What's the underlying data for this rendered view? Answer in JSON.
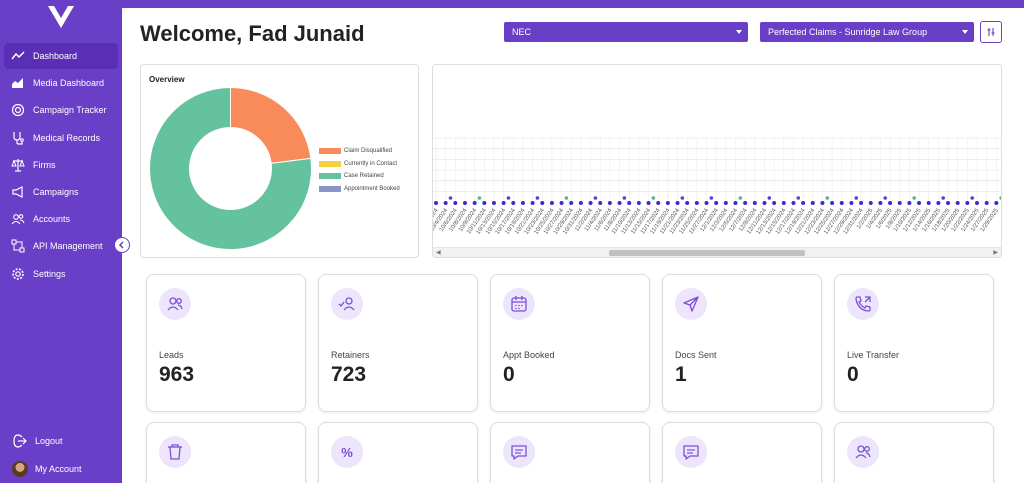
{
  "sidebar": {
    "items": [
      {
        "label": "Dashboard",
        "icon": "activity-icon",
        "active": true
      },
      {
        "label": "Media Dashboard",
        "icon": "area-chart-icon"
      },
      {
        "label": "Campaign Tracker",
        "icon": "target-icon"
      },
      {
        "label": "Medical Records",
        "icon": "stethoscope-icon"
      },
      {
        "label": "Firms",
        "icon": "scale-icon"
      },
      {
        "label": "Campaigns",
        "icon": "megaphone-icon"
      },
      {
        "label": "Accounts",
        "icon": "users-icon"
      },
      {
        "label": "API Management",
        "icon": "network-icon"
      },
      {
        "label": "Settings",
        "icon": "gear-icon"
      }
    ],
    "bottom": {
      "logout": "Logout",
      "account": "My Account"
    }
  },
  "header": {
    "welcome": "Welcome, Fad Junaid",
    "select_nec": "NEC",
    "select_firm": "Perfected Claims - Sunridge Law Group"
  },
  "overview": {
    "title": "Overview",
    "legend": [
      {
        "label": "Claim Disqualified",
        "color": "#f98a5a"
      },
      {
        "label": "Currently in Contact",
        "color": "#f5d23c"
      },
      {
        "label": "Case Retained",
        "color": "#64c29f"
      },
      {
        "label": "Appointment Booked",
        "color": "#8c96c6"
      }
    ]
  },
  "chart_data": {
    "type": "pie",
    "categories": [
      "Claim Disqualified",
      "Currently in Contact",
      "Case Retained",
      "Appointment Booked"
    ],
    "values": [
      23,
      0,
      77,
      0
    ],
    "colors": [
      "#f98a5a",
      "#f5d23c",
      "#64c29f",
      "#8c96c6"
    ]
  },
  "timeline": {
    "dates": [
      "10/2/2024",
      "10/4/2024",
      "10/6/2024",
      "10/8/2024",
      "10/9/2024",
      "10/11/2024",
      "10/13/2024",
      "10/15/2024",
      "10/17/2024",
      "10/19/2024",
      "10/21/2024",
      "10/23/2024",
      "10/25/2024",
      "10/27/2024",
      "10/29/2024",
      "10/31/2024",
      "11/2/2024",
      "11/4/2024",
      "11/6/2024",
      "11/8/2024",
      "11/10/2024",
      "11/13/2024",
      "11/15/2024",
      "11/17/2024",
      "11/19/2024",
      "11/21/2024",
      "11/23/2024",
      "11/25/2024",
      "11/27/2024",
      "12/1/2024",
      "12/3/2024",
      "12/5/2024",
      "12/7/2024",
      "12/9/2024",
      "12/11/2024",
      "12/13/2024",
      "12/15/2024",
      "12/17/2024",
      "12/19/2024",
      "12/21/2024",
      "12/23/2024",
      "12/25/2024",
      "12/27/2024",
      "12/29/2024",
      "12/31/2024",
      "1/2/2025",
      "1/4/2025",
      "1/6/2025",
      "1/8/2025",
      "1/10/2025",
      "1/12/2025",
      "1/14/2025",
      "1/16/2025",
      "1/18/2025",
      "1/20/2025",
      "1/22/2025",
      "1/24/2025",
      "1/27/2025",
      "1/29/2025"
    ]
  },
  "kpis": [
    {
      "label": "Leads",
      "value": "963",
      "icon": "users-icon"
    },
    {
      "label": "Retainers",
      "value": "723",
      "icon": "user-check-icon"
    },
    {
      "label": "Appt Booked",
      "value": "0",
      "icon": "calendar-icon"
    },
    {
      "label": "Docs Sent",
      "value": "1",
      "icon": "send-icon"
    },
    {
      "label": "Live Transfer",
      "value": "0",
      "icon": "phone-forward-icon"
    }
  ],
  "kpis_row2": [
    {
      "icon": "trash-icon"
    },
    {
      "icon": "percent-icon"
    },
    {
      "icon": "message-icon"
    },
    {
      "icon": "message-icon"
    },
    {
      "icon": "users-icon"
    }
  ]
}
